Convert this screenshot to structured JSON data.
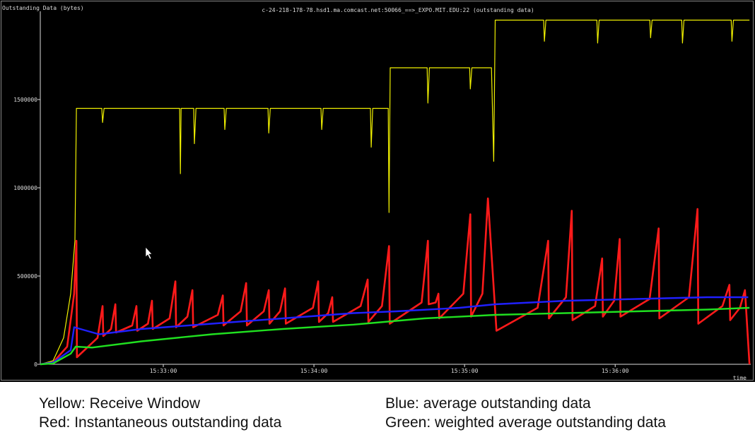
{
  "chart_data": {
    "type": "line",
    "title": "c-24-218-178-78.hsd1.ma.comcast.net:50066_==>_EXPO.MIT.EDU:22 (outstanding data)",
    "y_label": "Outstanding Data (bytes)",
    "x_label": "time",
    "xlim": [
      55931,
      56214
    ],
    "ylim": [
      0,
      2000000
    ],
    "yticks": [
      0,
      500000,
      1000000,
      1500000
    ],
    "xticks": [
      {
        "value": 55980,
        "label": "15:33:00"
      },
      {
        "value": 56040,
        "label": "15:34:00"
      },
      {
        "value": 56100,
        "label": "15:35:00"
      },
      {
        "value": 56160,
        "label": "15:36:00"
      }
    ],
    "grid": false,
    "series": [
      {
        "name": "Yellow: Receive Window",
        "color": "#f0f000",
        "x": [
          55931,
          55936.1,
          55940.3,
          55943.1,
          55944.8,
          55945.4,
          55955.5,
          55955.8,
          55956.4,
          55986.5,
          55986.8,
          55987.1,
          55992.1,
          55992.4,
          55993.0,
          56004.2,
          56004.5,
          56005.1,
          56021.7,
          56022.0,
          56022.6,
          56042.8,
          56043.1,
          56043.7,
          56062.5,
          56062.8,
          56063.4,
          56069.6,
          56069.9,
          56070.4,
          56085.1,
          56085.4,
          56086.0,
          56102.0,
          56102.3,
          56102.9,
          56110.7,
          56111.6,
          56112.2,
          56131.5,
          56131.8,
          56132.4,
          56152.7,
          56153.0,
          56153.6,
          56173.8,
          56174.1,
          56174.7,
          56186.5,
          56186.8,
          56187.4,
          56206.2,
          56206.5,
          56207.1,
          56213.5
        ],
        "values": [
          0,
          20000,
          150000,
          400000,
          700000,
          1450000,
          1450000,
          1370000,
          1450000,
          1450000,
          1080000,
          1450000,
          1450000,
          1250000,
          1450000,
          1450000,
          1330000,
          1450000,
          1450000,
          1310000,
          1450000,
          1450000,
          1330000,
          1450000,
          1450000,
          1230000,
          1450000,
          1450000,
          860000,
          1680000,
          1680000,
          1480000,
          1680000,
          1680000,
          1560000,
          1680000,
          1680000,
          1150000,
          1950000,
          1950000,
          1830000,
          1950000,
          1950000,
          1820000,
          1950000,
          1950000,
          1850000,
          1950000,
          1950000,
          1820000,
          1950000,
          1950000,
          1830000,
          1950000,
          1950000
        ]
      },
      {
        "name": "Red: Instantaneous outstanding data",
        "color": "#ff1a1a",
        "x": [
          55931.0,
          55936.1,
          55941.7,
          55944.5,
          55945.4,
          55945.6,
          55953.8,
          55955.8,
          55956.1,
          55959.2,
          55960.9,
          55961.2,
          55967.6,
          55969.3,
          55969.6,
          55973.9,
          55975.5,
          55975.8,
          55982.5,
          55984.8,
          55985.1,
          55989.6,
          55991.6,
          55991.9,
          56001.7,
          56003.7,
          56004.0,
          56010.8,
          56013.0,
          56013.3,
          56020.0,
          56022.0,
          56022.3,
          56026.5,
          56028.5,
          56028.8,
          56039.6,
          56041.7,
          56042.0,
          56045.7,
          56047.3,
          56047.6,
          56058.6,
          56061.4,
          56061.7,
          56067.1,
          56069.9,
          56070.2,
          56082.9,
          56085.4,
          56085.7,
          56088.5,
          56089.6,
          56089.9,
          56099.5,
          56102.3,
          56102.6,
          56107.1,
          56109.3,
          56112.7,
          56129.1,
          56133.3,
          56133.6,
          56140.4,
          56142.7,
          56143.0,
          56152.0,
          56154.8,
          56155.1,
          56159.6,
          56161.8,
          56162.1,
          56173.7,
          56177.3,
          56177.6,
          56189.4,
          56192.8,
          56193.1,
          56202.7,
          56205.5,
          56205.8,
          56209.7,
          56211.7,
          56213.5
        ],
        "values": [
          0,
          10000,
          100000,
          400000,
          700000,
          40000,
          150000,
          330000,
          160000,
          200000,
          340000,
          180000,
          220000,
          330000,
          190000,
          230000,
          360000,
          200000,
          260000,
          470000,
          210000,
          270000,
          420000,
          210000,
          280000,
          390000,
          220000,
          300000,
          460000,
          220000,
          300000,
          420000,
          230000,
          300000,
          430000,
          230000,
          320000,
          470000,
          240000,
          290000,
          380000,
          240000,
          330000,
          480000,
          240000,
          330000,
          670000,
          230000,
          350000,
          700000,
          340000,
          350000,
          400000,
          260000,
          400000,
          850000,
          270000,
          400000,
          940000,
          190000,
          320000,
          700000,
          260000,
          380000,
          870000,
          250000,
          330000,
          600000,
          270000,
          360000,
          710000,
          270000,
          370000,
          770000,
          260000,
          380000,
          880000,
          230000,
          330000,
          450000,
          250000,
          320000,
          420000,
          0
        ]
      },
      {
        "name": "Blue: average outstanding data",
        "color": "#2020ff",
        "x": [
          55931,
          55936.1,
          55943.1,
          55944.5,
          55954.4,
          55971.3,
          55999.4,
          56027.6,
          56055.8,
          56072.7,
          56098.0,
          56112.2,
          56140.4,
          56168.5,
          56196.7,
          56213.0
        ],
        "values": [
          0,
          10000,
          80000,
          210000,
          170000,
          200000,
          230000,
          260000,
          290000,
          300000,
          320000,
          340000,
          360000,
          370000,
          380000,
          380000
        ]
      },
      {
        "name": "Green: weighted average outstanding data",
        "color": "#20e020",
        "x": [
          55931,
          55936.1,
          55943.1,
          55945.1,
          55951.6,
          55971.3,
          55999.4,
          56027.6,
          56055.8,
          56084.0,
          56112.2,
          56140.4,
          56168.5,
          56196.7,
          56213.5
        ],
        "values": [
          0,
          5000,
          60000,
          100000,
          95000,
          130000,
          170000,
          200000,
          225000,
          260000,
          280000,
          290000,
          300000,
          310000,
          320000
        ]
      }
    ]
  }
}
